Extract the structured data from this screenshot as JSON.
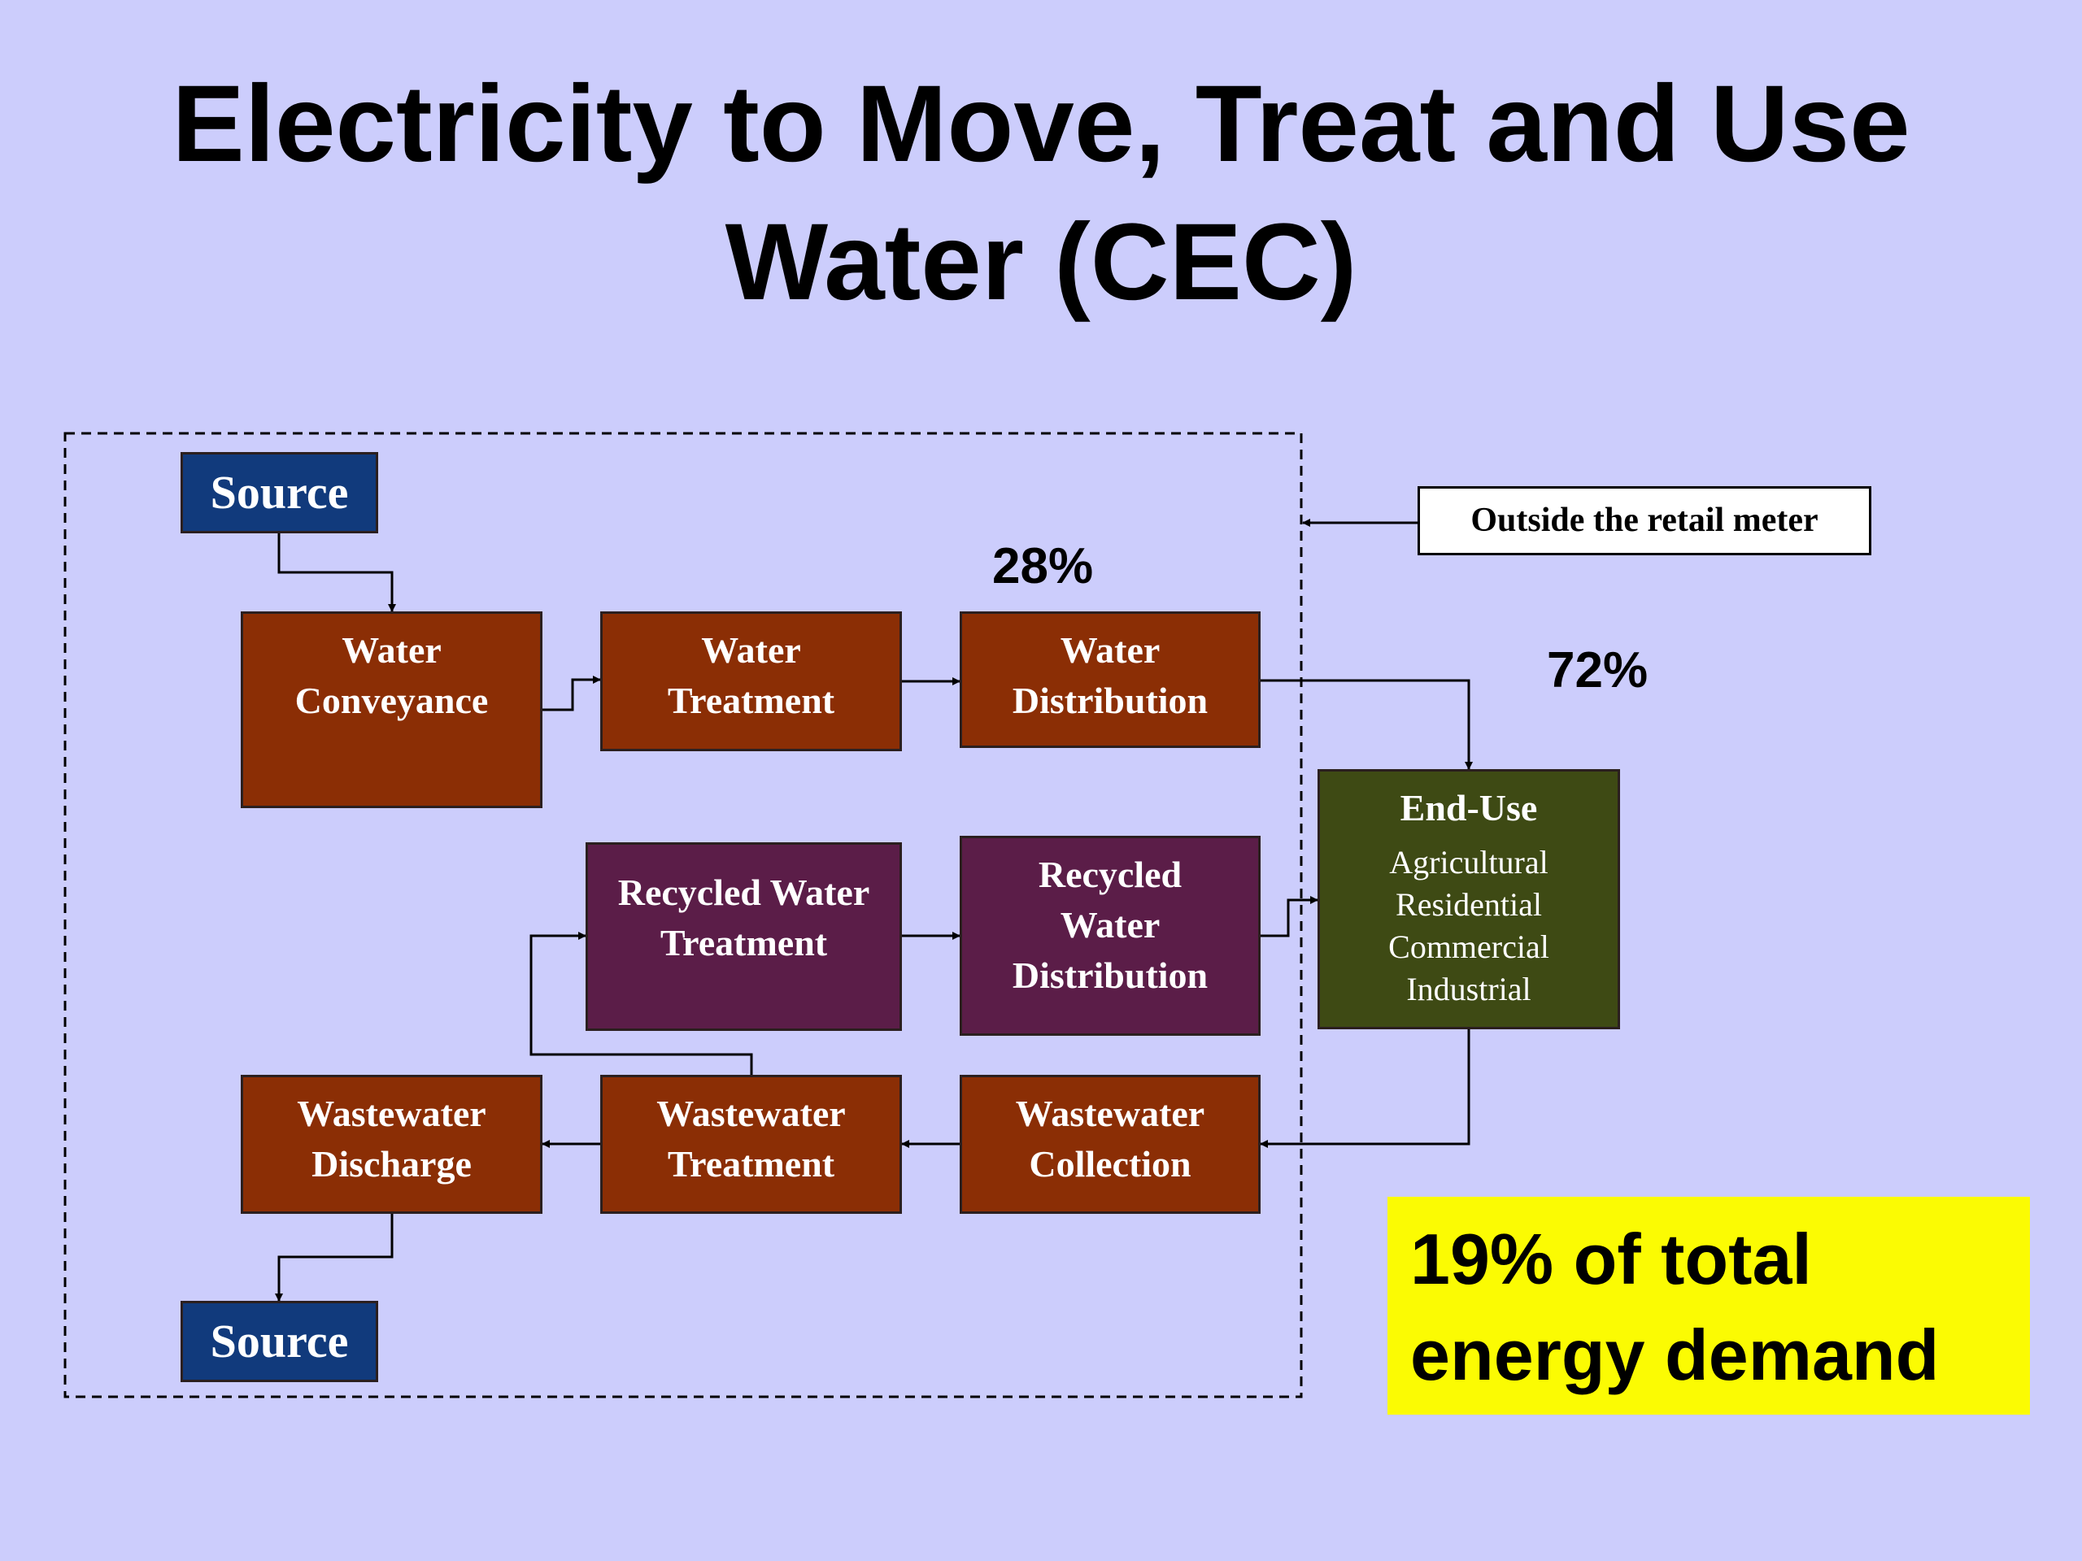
{
  "title": {
    "line1": "Electricity to Move, Treat and Use",
    "line2": "Water (CEC)"
  },
  "nodes": {
    "source_top": [
      "Source"
    ],
    "water_conveyance": [
      "Water",
      "Conveyance"
    ],
    "water_treatment": [
      "Water",
      "Treatment"
    ],
    "water_distribution": [
      "Water",
      "Distribution"
    ],
    "recycled_water_treatment": [
      "Recycled Water",
      "Treatment"
    ],
    "recycled_water_distribution": [
      "Recycled",
      "Water",
      "Distribution"
    ],
    "wastewater_discharge": [
      "Wastewater",
      "Discharge"
    ],
    "wastewater_treatment": [
      "Wastewater",
      "Treatment"
    ],
    "wastewater_collection": [
      "Wastewater",
      "Collection"
    ],
    "source_bottom": [
      "Source"
    ],
    "end_use": {
      "title": "End-Use",
      "items": [
        "Agricultural",
        "Residential",
        "Commercial",
        "Industrial"
      ]
    }
  },
  "annotations": {
    "outside_meter": "Outside the retail meter",
    "pct_outside": "28%",
    "pct_end_use": "72%"
  },
  "callout": {
    "line1": "19% of total",
    "line2": "energy demand"
  },
  "colors": {
    "background": "#cccdfc",
    "source": "#113a7c",
    "water_process": "#8b2e05",
    "recycled_process": "#5b1d48",
    "end_use": "#3e4a14",
    "callout": "#fbfb03"
  }
}
